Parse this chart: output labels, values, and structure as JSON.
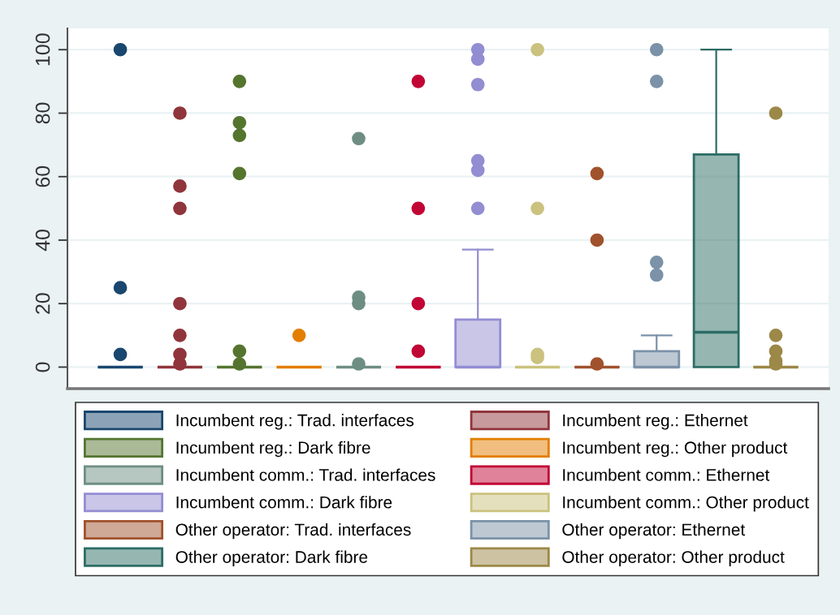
{
  "chart_data": {
    "type": "box",
    "categories": [
      null
    ],
    "ylim": [
      -6.8,
      106.7
    ],
    "yticks": [
      0,
      20,
      40,
      60,
      80,
      100
    ],
    "grid": "y",
    "legend": "bottom",
    "tick_labels": "y",
    "marker": "circle",
    "series": [
      {
        "name": "Incumbent reg.: Trad. interfaces",
        "color": "#1a476f",
        "boxes": [
          {
            "low": 0,
            "q1": 0,
            "median": 0,
            "q3": 0,
            "high": 0,
            "outliers": [
              100,
              25,
              4
            ]
          }
        ]
      },
      {
        "name": "Incumbent reg.: Ethernet",
        "color": "#90353b",
        "boxes": [
          {
            "low": 0,
            "q1": 0,
            "median": 0,
            "q3": 0,
            "high": 0,
            "outliers": [
              80,
              57,
              50,
              20,
              10,
              4,
              1
            ]
          }
        ]
      },
      {
        "name": "Incumbent reg.: Dark fibre",
        "color": "#55752f",
        "boxes": [
          {
            "low": 0,
            "q1": 0,
            "median": 0,
            "q3": 0,
            "high": 0,
            "outliers": [
              90,
              77,
              73,
              61,
              5,
              1
            ]
          }
        ]
      },
      {
        "name": "Incumbent reg.: Other product",
        "color": "#e37e00",
        "boxes": [
          {
            "low": 0,
            "q1": 0,
            "median": 0,
            "q3": 0,
            "high": 0,
            "outliers": [
              10
            ]
          }
        ]
      },
      {
        "name": "Incumbent comm.: Trad. interfaces",
        "color": "#6e8e84",
        "boxes": [
          {
            "low": 0,
            "q1": 0,
            "median": 0,
            "q3": 0,
            "high": 0,
            "outliers": [
              72,
              22,
              20,
              1
            ]
          }
        ]
      },
      {
        "name": "Incumbent comm.: Ethernet",
        "color": "#c10534",
        "boxes": [
          {
            "low": 0,
            "q1": 0,
            "median": 0,
            "q3": 0,
            "high": 0,
            "outliers": [
              90,
              50,
              20,
              5
            ]
          }
        ]
      },
      {
        "name": "Incumbent comm.: Dark fibre",
        "color": "#938dd2",
        "boxes": [
          {
            "low": 0,
            "q1": 0,
            "median": 0,
            "q3": 15,
            "high": 37,
            "outliers": [
              100,
              97,
              89,
              65,
              62,
              50
            ]
          }
        ]
      },
      {
        "name": "Incumbent comm.: Other product",
        "color": "#cac27e",
        "boxes": [
          {
            "low": 0,
            "q1": 0,
            "median": 0,
            "q3": 0,
            "high": 0,
            "outliers": [
              100,
              50,
              4,
              3
            ]
          }
        ]
      },
      {
        "name": "Other operator: Trad. interfaces",
        "color": "#a0522d",
        "boxes": [
          {
            "low": 0,
            "q1": 0,
            "median": 0,
            "q3": 0,
            "high": 0,
            "outliers": [
              61,
              40,
              1
            ]
          }
        ]
      },
      {
        "name": "Other operator: Ethernet",
        "color": "#7b92a8",
        "boxes": [
          {
            "low": 0,
            "q1": 0,
            "median": 0,
            "q3": 5,
            "high": 10,
            "outliers": [
              100,
              90,
              33,
              29
            ]
          }
        ]
      },
      {
        "name": "Other operator: Dark fibre",
        "color": "#2d6d66",
        "boxes": [
          {
            "low": 0,
            "q1": 0,
            "median": 11,
            "q3": 67,
            "high": 100
          }
        ]
      },
      {
        "name": "Other operator: Other product",
        "color": "#9c8847",
        "boxes": [
          {
            "low": 0,
            "q1": 0,
            "median": 0,
            "q3": 0,
            "high": 0,
            "outliers": [
              80,
              10,
              5,
              2,
              1
            ]
          }
        ]
      }
    ]
  }
}
